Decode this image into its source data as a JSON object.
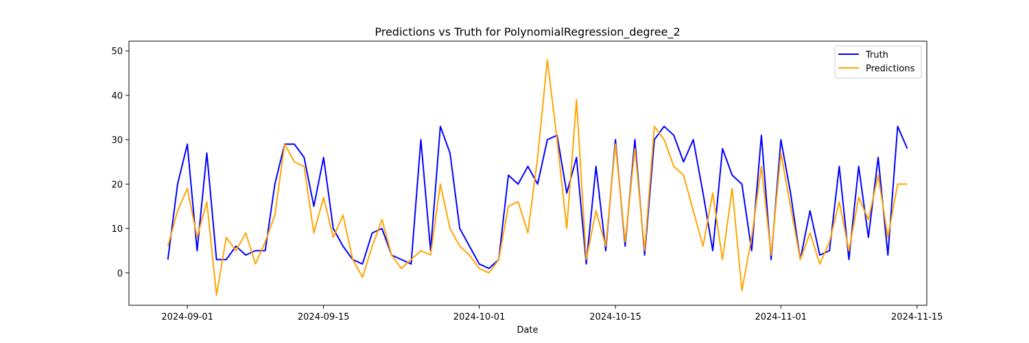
{
  "chart_data": {
    "type": "line",
    "title": "Predictions vs Truth for PolynomialRegression_degree_2",
    "xlabel": "Date",
    "ylabel": "",
    "xlim": [
      "2024-08-26",
      "2024-11-16"
    ],
    "ylim": [
      -7.3,
      52.2
    ],
    "grid": false,
    "legend_position": "top-right",
    "x_ticks": [
      "2024-09-01",
      "2024-09-15",
      "2024-10-01",
      "2024-10-15",
      "2024-11-01",
      "2024-11-15"
    ],
    "y_ticks": [
      0,
      10,
      20,
      30,
      40,
      50
    ],
    "series": [
      {
        "name": "Truth",
        "color": "#0000ff",
        "x": [
          "2024-08-30",
          "2024-08-31",
          "2024-09-01",
          "2024-09-02",
          "2024-09-03",
          "2024-09-04",
          "2024-09-05",
          "2024-09-06",
          "2024-09-07",
          "2024-09-08",
          "2024-09-09",
          "2024-09-10",
          "2024-09-11",
          "2024-09-12",
          "2024-09-13",
          "2024-09-14",
          "2024-09-15",
          "2024-09-16",
          "2024-09-17",
          "2024-09-18",
          "2024-09-19",
          "2024-09-20",
          "2024-09-21",
          "2024-09-22",
          "2024-09-23",
          "2024-09-24",
          "2024-09-25",
          "2024-09-26",
          "2024-09-27",
          "2024-09-28",
          "2024-09-29",
          "2024-09-30",
          "2024-10-01",
          "2024-10-02",
          "2024-10-03",
          "2024-10-04",
          "2024-10-05",
          "2024-10-06",
          "2024-10-07",
          "2024-10-08",
          "2024-10-09",
          "2024-10-10",
          "2024-10-11",
          "2024-10-12",
          "2024-10-13",
          "2024-10-14",
          "2024-10-15",
          "2024-10-16",
          "2024-10-17",
          "2024-10-18",
          "2024-10-19",
          "2024-10-20",
          "2024-10-21",
          "2024-10-22",
          "2024-10-23",
          "2024-10-24",
          "2024-10-25",
          "2024-10-26",
          "2024-10-27",
          "2024-10-28",
          "2024-10-29",
          "2024-10-30",
          "2024-10-31",
          "2024-11-01",
          "2024-11-02",
          "2024-11-03",
          "2024-11-04",
          "2024-11-05",
          "2024-11-06",
          "2024-11-07",
          "2024-11-08",
          "2024-11-09",
          "2024-11-10",
          "2024-11-11",
          "2024-11-12",
          "2024-11-13",
          "2024-11-14"
        ],
        "y": [
          3,
          20,
          29,
          5,
          27,
          3,
          3,
          6,
          4,
          5,
          5,
          20,
          29,
          29,
          26,
          15,
          26,
          10,
          6,
          3,
          2,
          9,
          10,
          4,
          3,
          2,
          30,
          5,
          33,
          27,
          10,
          6,
          2,
          1,
          3,
          22,
          20,
          24,
          20,
          30,
          31,
          18,
          26,
          2,
          24,
          5,
          30,
          6,
          30,
          4,
          30,
          33,
          31,
          25,
          30,
          18,
          5,
          28,
          22,
          20,
          5,
          31,
          3,
          30,
          18,
          3,
          14,
          4,
          5,
          24,
          3,
          24,
          8,
          26,
          4,
          33,
          28
        ]
      },
      {
        "name": "Predictions",
        "color": "#ffa500",
        "x": [
          "2024-08-30",
          "2024-08-31",
          "2024-09-01",
          "2024-09-02",
          "2024-09-03",
          "2024-09-04",
          "2024-09-05",
          "2024-09-06",
          "2024-09-07",
          "2024-09-08",
          "2024-09-09",
          "2024-09-10",
          "2024-09-11",
          "2024-09-12",
          "2024-09-13",
          "2024-09-14",
          "2024-09-15",
          "2024-09-16",
          "2024-09-17",
          "2024-09-18",
          "2024-09-19",
          "2024-09-20",
          "2024-09-21",
          "2024-09-22",
          "2024-09-23",
          "2024-09-24",
          "2024-09-25",
          "2024-09-26",
          "2024-09-27",
          "2024-09-28",
          "2024-09-29",
          "2024-09-30",
          "2024-10-01",
          "2024-10-02",
          "2024-10-03",
          "2024-10-04",
          "2024-10-05",
          "2024-10-06",
          "2024-10-07",
          "2024-10-08",
          "2024-10-09",
          "2024-10-10",
          "2024-10-11",
          "2024-10-12",
          "2024-10-13",
          "2024-10-14",
          "2024-10-15",
          "2024-10-16",
          "2024-10-17",
          "2024-10-18",
          "2024-10-19",
          "2024-10-20",
          "2024-10-21",
          "2024-10-22",
          "2024-10-23",
          "2024-10-24",
          "2024-10-25",
          "2024-10-26",
          "2024-10-27",
          "2024-10-28",
          "2024-10-29",
          "2024-10-30",
          "2024-10-31",
          "2024-11-01",
          "2024-11-02",
          "2024-11-03",
          "2024-11-04",
          "2024-11-05",
          "2024-11-06",
          "2024-11-07",
          "2024-11-08",
          "2024-11-09",
          "2024-11-10",
          "2024-11-11",
          "2024-11-12",
          "2024-11-13",
          "2024-11-14"
        ],
        "y": [
          6,
          14,
          19,
          8,
          16,
          -5,
          8,
          5,
          9,
          2,
          7,
          13,
          29,
          25,
          24,
          9,
          17,
          8,
          13,
          3,
          -1,
          6,
          12,
          4,
          1,
          3,
          5,
          4,
          20,
          10,
          6,
          4,
          1,
          0,
          3,
          15,
          16,
          9,
          26,
          48,
          30,
          10,
          39,
          3,
          14,
          6,
          29,
          7,
          28,
          5,
          33,
          30,
          24,
          22,
          14,
          6,
          18,
          3,
          19,
          -4,
          8,
          24,
          4,
          27,
          15,
          3,
          9,
          2,
          7,
          16,
          5,
          17,
          12,
          22,
          8,
          20,
          20
        ]
      }
    ]
  }
}
